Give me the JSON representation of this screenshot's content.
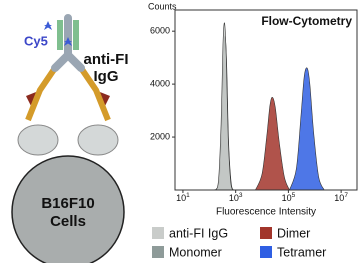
{
  "diagram": {
    "dye": "Cy5",
    "antibody": [
      "anti-FI",
      "IgG"
    ],
    "cell": [
      "B16F10",
      "Cells"
    ]
  },
  "chart_data": {
    "type": "area",
    "title": "Flow-Cytometry",
    "x_label": "Fluorescence Intensity",
    "y_label": "Counts",
    "xscale": "log",
    "xlim": [
      5,
      40000000
    ],
    "xticks": [
      {
        "value": 10,
        "label": "10",
        "exponent": "1"
      },
      {
        "value": 1000,
        "label": "10",
        "exponent": "3"
      },
      {
        "value": 100000,
        "label": "10",
        "exponent": "5"
      },
      {
        "value": 10000000,
        "label": "10",
        "exponent": "7"
      }
    ],
    "ylim": [
      0,
      6800
    ],
    "yticks": [
      2000,
      4000,
      6000
    ],
    "legend": "bottom",
    "series": [
      {
        "name": "anti-FI IgG",
        "color": "#c9ccca",
        "x": [
          150,
          220,
          280,
          330,
          380,
          440,
          520,
          650,
          800
        ],
        "values": [
          0,
          300,
          2500,
          5500,
          6300,
          5000,
          2000,
          300,
          0
        ]
      },
      {
        "name": "Monomer",
        "color": "#8e9b99",
        "x": [
          170,
          240,
          300,
          350,
          400,
          460,
          540,
          680,
          850
        ],
        "values": [
          0,
          400,
          2600,
          5000,
          5800,
          4600,
          1800,
          250,
          0
        ]
      },
      {
        "name": "Dimer",
        "color": "#a2352b",
        "x": [
          5600,
          10000,
          15000,
          20000,
          25000,
          32000,
          45000,
          70000,
          110000
        ],
        "values": [
          0,
          600,
          2000,
          3200,
          3500,
          3100,
          1800,
          500,
          0
        ]
      },
      {
        "name": "Tetramer",
        "color": "#2f5fe3",
        "x": [
          110000,
          200000,
          300000,
          400000,
          520000,
          650000,
          900000,
          1400000,
          2300000
        ],
        "values": [
          0,
          800,
          2800,
          4300,
          4600,
          4000,
          2200,
          500,
          0
        ]
      }
    ]
  }
}
